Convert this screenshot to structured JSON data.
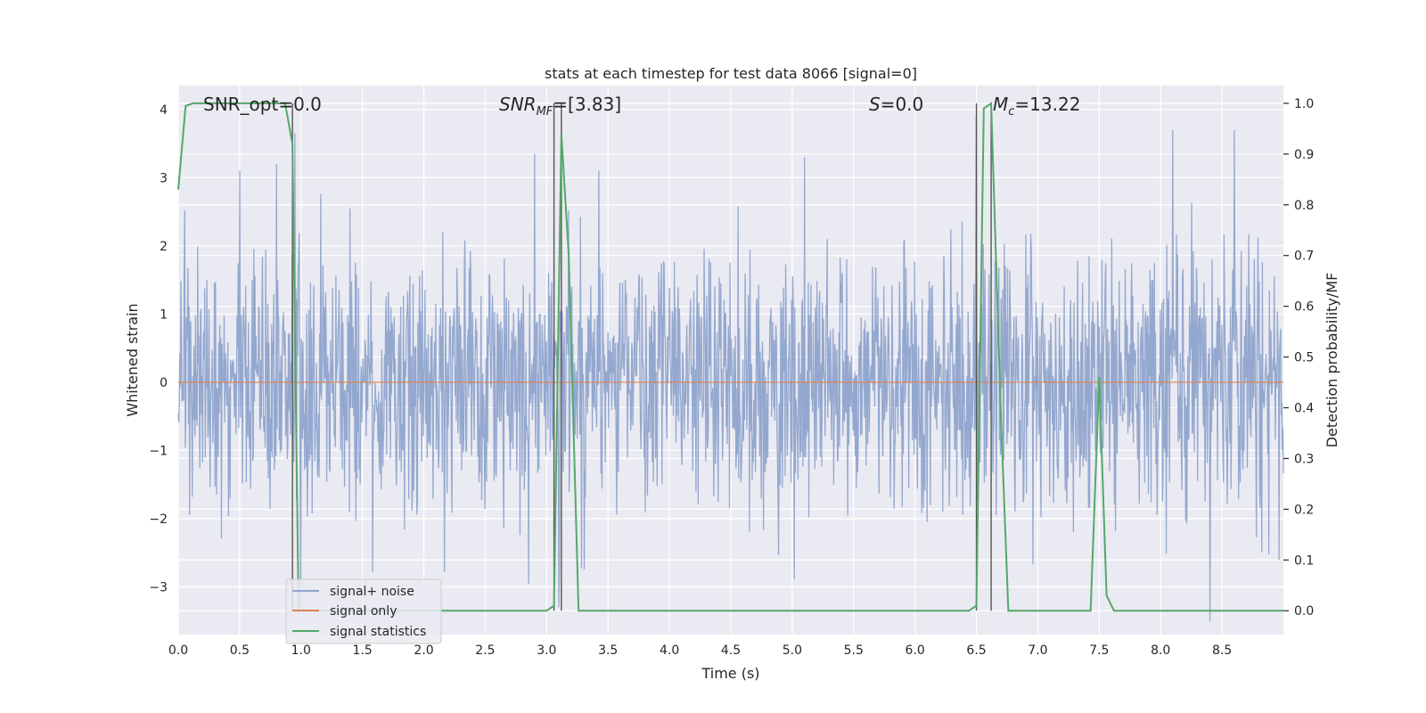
{
  "chart_data": {
    "type": "line",
    "title": "stats at each timestep for test data 8066 [signal=0]",
    "xlabel": "Time (s)",
    "ylabel": "Whitened strain",
    "y2label": "Detection probability/MF",
    "xlim": [
      0.0,
      9.0
    ],
    "ylim": [
      -3.7,
      4.35
    ],
    "y2lim": [
      -0.047,
      1.035
    ],
    "x_ticks": [
      "0.0",
      "0.5",
      "1.0",
      "1.5",
      "2.0",
      "2.5",
      "3.0",
      "3.5",
      "4.0",
      "4.5",
      "5.0",
      "5.5",
      "6.0",
      "6.5",
      "7.0",
      "7.5",
      "8.0",
      "8.5"
    ],
    "y_ticks": [
      "−3",
      "−2",
      "−1",
      "0",
      "1",
      "2",
      "3",
      "4"
    ],
    "y2_ticks": [
      "0.0",
      "0.1",
      "0.2",
      "0.3",
      "0.4",
      "0.5",
      "0.6",
      "0.7",
      "0.8",
      "0.9",
      "1.0"
    ],
    "grid": true,
    "legend_position": "bottom-left",
    "annotations": {
      "snr_opt": "SNR_opt=0.0",
      "snr_mf_prefix": "SNR",
      "snr_mf_sub": "MF",
      "snr_mf_value": "=[3.83]",
      "s_label": "S",
      "s_value": "=0.0",
      "mc_label": "M",
      "mc_sub": "c",
      "mc_value": "=13.22"
    },
    "vertical_lines_x": [
      0.93,
      3.06,
      3.12,
      6.5,
      6.62
    ],
    "series": [
      {
        "name": "signal+ noise",
        "color": "#8fa4cc",
        "noise_std": 0.95,
        "peaks": [
          [
            0.95,
            3.65
          ],
          [
            0.5,
            3.1
          ],
          [
            0.8,
            3.2
          ],
          [
            2.9,
            3.35
          ],
          [
            6.5,
            3.9
          ],
          [
            8.6,
            3.7
          ],
          [
            8.1,
            3.7
          ],
          [
            5.1,
            3.3
          ],
          [
            8.4,
            -3.5
          ],
          [
            3.1,
            -3.3
          ],
          [
            1.0,
            -3.3
          ]
        ]
      },
      {
        "name": "signal only",
        "color": "#dd8452",
        "y": 0.0
      },
      {
        "name": "signal statistics",
        "color": "#55a868",
        "x": [
          0.0,
          0.06,
          0.12,
          0.2,
          0.5,
          0.87,
          0.93,
          0.98,
          1.02,
          3.0,
          3.06,
          3.12,
          3.18,
          3.26,
          6.44,
          6.5,
          6.56,
          6.62,
          6.7,
          6.76,
          7.43,
          7.5,
          7.56,
          7.62,
          9.0
        ],
        "y": [
          0.83,
          0.995,
          1.0,
          1.0,
          1.0,
          1.0,
          0.92,
          0.0,
          0.0,
          0.0,
          0.01,
          0.94,
          0.7,
          0.0,
          0.0,
          0.01,
          0.99,
          1.0,
          0.38,
          0.0,
          0.0,
          0.46,
          0.03,
          0.0,
          0.0
        ]
      }
    ]
  }
}
